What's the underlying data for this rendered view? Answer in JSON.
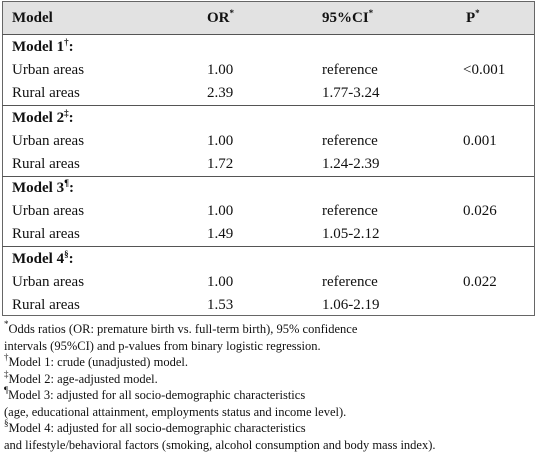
{
  "header": {
    "columns": [
      {
        "text": "Model"
      },
      {
        "text": "OR",
        "sup": "*"
      },
      {
        "text": "95%CI",
        "sup": "*"
      },
      {
        "text": "P",
        "sup": "*"
      }
    ]
  },
  "groups": [
    {
      "name": "Model 1",
      "sup": "†",
      "end": ":",
      "p": "<0.001",
      "rows": [
        {
          "label": "Urban areas",
          "or": "1.00",
          "ci": "reference"
        },
        {
          "label": "Rural areas",
          "or": "2.39",
          "ci": "1.77-3.24"
        }
      ]
    },
    {
      "name": "Model 2",
      "sup": "‡",
      "end": ":",
      "p": "0.001",
      "rows": [
        {
          "label": "Urban areas",
          "or": "1.00",
          "ci": "reference"
        },
        {
          "label": "Rural areas",
          "or": "1.72",
          "ci": "1.24-2.39"
        }
      ]
    },
    {
      "name": "Model 3",
      "sup": "¶",
      "end": ":",
      "p": "0.026",
      "rows": [
        {
          "label": "Urban areas",
          "or": "1.00",
          "ci": "reference"
        },
        {
          "label": "Rural areas",
          "or": "1.49",
          "ci": "1.05-2.12"
        }
      ]
    },
    {
      "name": "Model 4",
      "sup": "§",
      "end": ":",
      "p": "0.022",
      "rows": [
        {
          "label": "Urban areas",
          "or": "1.00",
          "ci": "reference"
        },
        {
          "label": "Rural areas",
          "or": "1.53",
          "ci": "1.06-2.19"
        }
      ]
    }
  ],
  "footnotes": [
    {
      "sup": "*",
      "text": "Odds ratios (OR: premature birth vs. full-term birth), 95% confidence"
    },
    {
      "text": "intervals (95%CI) and p-values from binary logistic regression."
    },
    {
      "sup": "†",
      "text": "Model 1: crude (unadjusted) model."
    },
    {
      "sup": "‡",
      "text": "Model 2: age-adjusted model."
    },
    {
      "sup": "¶",
      "text": "Model 3: adjusted for all socio-demographic characteristics"
    },
    {
      "text": "(age, educational attainment, employments status and income level)."
    },
    {
      "sup": "§",
      "text": "Model 4: adjusted for all socio-demographic characteristics"
    },
    {
      "text": "and lifestyle/behavioral factors (smoking, alcohol consumption and body mass index)."
    }
  ]
}
